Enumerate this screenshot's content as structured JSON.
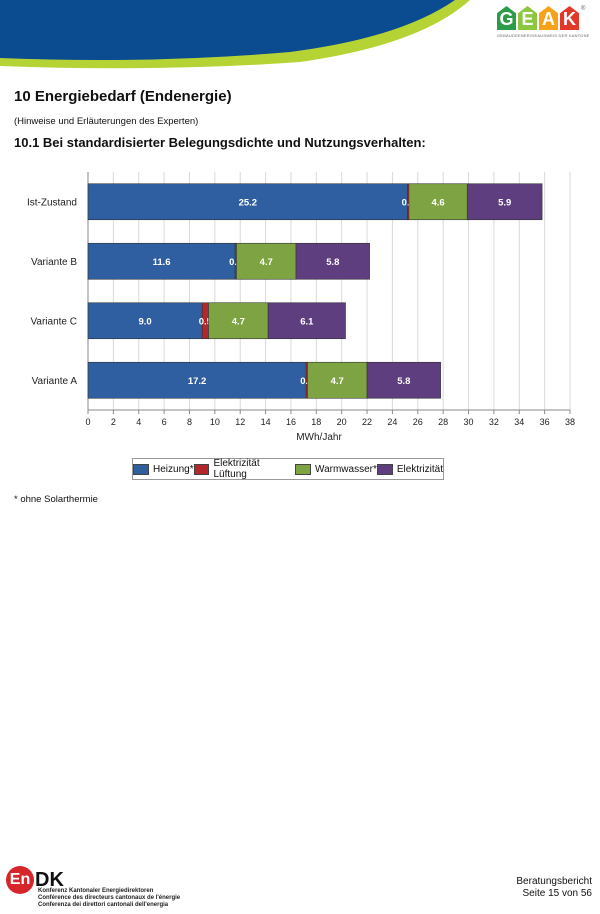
{
  "header": {
    "logo": {
      "letters": [
        "G",
        "E",
        "A",
        "K"
      ],
      "letter_colors": [
        "#2e9b48",
        "#8dc63f",
        "#f7a21b",
        "#e2382a"
      ],
      "registered": "®",
      "subtitle": "GEBÄUDEENERGIEAUSWEIS DER KANTONE"
    },
    "banner_colors": {
      "blue": "#0a4c8f",
      "green": "#b5d334"
    }
  },
  "section": {
    "title": "10   Energiebedarf (Endenergie)",
    "note": "(Hinweise und Erläuterungen des Experten)",
    "subtitle": "10.1   Bei standardisierter Belegungsdichte und Nutzungsverhalten:"
  },
  "chart_data": {
    "type": "bar",
    "orientation": "horizontal",
    "stacked": true,
    "categories": [
      "Ist-Zustand",
      "Variante B",
      "Variante C",
      "Variante A"
    ],
    "series": [
      {
        "name": "Heizung*",
        "color": "#2f5fa0",
        "values": [
          25.2,
          11.6,
          9.0,
          17.2
        ]
      },
      {
        "name": "Elektrizität Lüftung",
        "color": "#b3262c",
        "values": [
          0.1,
          0.1,
          0.5,
          0.1
        ]
      },
      {
        "name": "Warmwasser*",
        "color": "#7ea343",
        "values": [
          4.6,
          4.7,
          4.7,
          4.7
        ]
      },
      {
        "name": "Elektrizität",
        "color": "#5e3e7f",
        "values": [
          5.9,
          5.8,
          6.1,
          5.8
        ]
      }
    ],
    "xlabel": "MWh/Jahr",
    "xlim": [
      0,
      38
    ],
    "xticks": [
      0,
      2,
      4,
      6,
      8,
      10,
      12,
      14,
      16,
      18,
      20,
      22,
      24,
      26,
      28,
      30,
      32,
      34,
      36,
      38
    ],
    "grid": true,
    "legend": "bottom"
  },
  "footnote": "* ohne Solarthermie",
  "footer": {
    "endk_letters": "En",
    "endk_dk": "DK",
    "endk_lines": [
      "Konferenz Kantonaler Energiedirektoren",
      "Conférence des directeurs cantonaux de l'énergie",
      "Conferenza dei direttori cantonali dell'energia"
    ],
    "report": "Beratungsbericht",
    "page": "Seite 15 von 56"
  }
}
